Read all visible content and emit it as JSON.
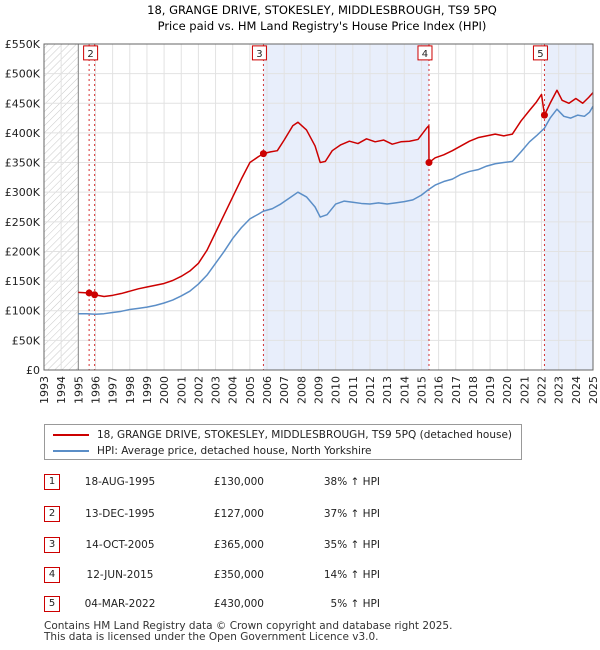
{
  "chart_data": {
    "type": "line",
    "title": "18, GRANGE DRIVE, STOKESLEY, MIDDLESBROUGH, TS9 5PQ",
    "subtitle": "Price paid vs. HM Land Registry's House Price Index (HPI)",
    "xlim": [
      1993,
      2025
    ],
    "ylim": [
      0,
      550000
    ],
    "x_ticks": [
      "1993",
      "1994",
      "1995",
      "1996",
      "1997",
      "1998",
      "1999",
      "2000",
      "2001",
      "2002",
      "2003",
      "2004",
      "2005",
      "2006",
      "2007",
      "2008",
      "2009",
      "2010",
      "2011",
      "2012",
      "2013",
      "2014",
      "2015",
      "2016",
      "2017",
      "2018",
      "2019",
      "2020",
      "2021",
      "2022",
      "2023",
      "2024",
      "2025"
    ],
    "y_ticks": [
      {
        "value": 0,
        "label": "£0"
      },
      {
        "value": 50000,
        "label": "£50K"
      },
      {
        "value": 100000,
        "label": "£100K"
      },
      {
        "value": 150000,
        "label": "£150K"
      },
      {
        "value": 200000,
        "label": "£200K"
      },
      {
        "value": 250000,
        "label": "£250K"
      },
      {
        "value": 300000,
        "label": "£300K"
      },
      {
        "value": 350000,
        "label": "£350K"
      },
      {
        "value": 400000,
        "label": "£400K"
      },
      {
        "value": 450000,
        "label": "£450K"
      },
      {
        "value": 500000,
        "label": "£500K"
      },
      {
        "value": 550000,
        "label": "£550K"
      }
    ],
    "hatched_until": 1995.0,
    "shaded_spans": [
      [
        2005.79,
        2015.44
      ],
      [
        2022.17,
        2025
      ]
    ],
    "series": [
      {
        "name": "18, GRANGE DRIVE, STOKESLEY, MIDDLESBROUGH, TS9 5PQ (detached house)",
        "color": "#cc0000",
        "points": [
          [
            1995.0,
            131000
          ],
          [
            1995.63,
            130000
          ],
          [
            1995.95,
            127000
          ],
          [
            1996.5,
            124000
          ],
          [
            1997.0,
            126000
          ],
          [
            1997.5,
            129000
          ],
          [
            1998.0,
            133000
          ],
          [
            1998.5,
            137000
          ],
          [
            1999.0,
            140000
          ],
          [
            1999.5,
            143000
          ],
          [
            2000.0,
            146000
          ],
          [
            2000.5,
            151000
          ],
          [
            2001.0,
            158000
          ],
          [
            2001.5,
            167000
          ],
          [
            2002.0,
            180000
          ],
          [
            2002.5,
            202000
          ],
          [
            2003.0,
            232000
          ],
          [
            2003.5,
            262000
          ],
          [
            2004.0,
            292000
          ],
          [
            2004.5,
            322000
          ],
          [
            2005.0,
            350000
          ],
          [
            2005.5,
            360000
          ],
          [
            2005.79,
            365000
          ],
          [
            2006.2,
            368000
          ],
          [
            2006.6,
            370000
          ],
          [
            2007.0,
            388000
          ],
          [
            2007.5,
            412000
          ],
          [
            2007.8,
            418000
          ],
          [
            2008.3,
            405000
          ],
          [
            2008.8,
            378000
          ],
          [
            2009.1,
            350000
          ],
          [
            2009.4,
            352000
          ],
          [
            2009.8,
            370000
          ],
          [
            2010.3,
            380000
          ],
          [
            2010.8,
            386000
          ],
          [
            2011.3,
            382000
          ],
          [
            2011.8,
            390000
          ],
          [
            2012.3,
            385000
          ],
          [
            2012.8,
            388000
          ],
          [
            2013.3,
            381000
          ],
          [
            2013.8,
            385000
          ],
          [
            2014.3,
            386000
          ],
          [
            2014.8,
            389000
          ],
          [
            2015.3,
            408000
          ],
          [
            2015.43,
            412000
          ],
          [
            2015.44,
            350000
          ],
          [
            2015.8,
            358000
          ],
          [
            2016.3,
            363000
          ],
          [
            2016.8,
            370000
          ],
          [
            2017.3,
            378000
          ],
          [
            2017.8,
            386000
          ],
          [
            2018.3,
            392000
          ],
          [
            2018.8,
            395000
          ],
          [
            2019.3,
            398000
          ],
          [
            2019.8,
            395000
          ],
          [
            2020.3,
            398000
          ],
          [
            2020.8,
            420000
          ],
          [
            2021.3,
            438000
          ],
          [
            2021.7,
            452000
          ],
          [
            2022.0,
            465000
          ],
          [
            2022.17,
            430000
          ],
          [
            2022.5,
            450000
          ],
          [
            2022.9,
            472000
          ],
          [
            2023.2,
            455000
          ],
          [
            2023.6,
            450000
          ],
          [
            2024.0,
            458000
          ],
          [
            2024.4,
            450000
          ],
          [
            2024.75,
            460000
          ],
          [
            2025.0,
            468000
          ]
        ]
      },
      {
        "name": "HPI: Average price, detached house, North Yorkshire",
        "color": "#5b8ec7",
        "points": [
          [
            1995.0,
            95000
          ],
          [
            1995.5,
            95000
          ],
          [
            1996.0,
            94000
          ],
          [
            1996.5,
            95000
          ],
          [
            1997.0,
            97000
          ],
          [
            1997.5,
            99000
          ],
          [
            1998.0,
            102000
          ],
          [
            1998.5,
            104000
          ],
          [
            1999.0,
            106000
          ],
          [
            1999.5,
            109000
          ],
          [
            2000.0,
            113000
          ],
          [
            2000.5,
            118000
          ],
          [
            2001.0,
            125000
          ],
          [
            2001.5,
            133000
          ],
          [
            2002.0,
            145000
          ],
          [
            2002.5,
            160000
          ],
          [
            2003.0,
            180000
          ],
          [
            2003.5,
            200000
          ],
          [
            2004.0,
            222000
          ],
          [
            2004.5,
            240000
          ],
          [
            2005.0,
            255000
          ],
          [
            2005.5,
            263000
          ],
          [
            2005.79,
            268000
          ],
          [
            2006.3,
            272000
          ],
          [
            2006.8,
            280000
          ],
          [
            2007.3,
            290000
          ],
          [
            2007.8,
            300000
          ],
          [
            2008.3,
            292000
          ],
          [
            2008.8,
            275000
          ],
          [
            2009.1,
            258000
          ],
          [
            2009.5,
            262000
          ],
          [
            2010.0,
            280000
          ],
          [
            2010.5,
            285000
          ],
          [
            2011.0,
            283000
          ],
          [
            2011.5,
            281000
          ],
          [
            2012.0,
            280000
          ],
          [
            2012.5,
            282000
          ],
          [
            2013.0,
            280000
          ],
          [
            2013.5,
            282000
          ],
          [
            2014.0,
            284000
          ],
          [
            2014.5,
            287000
          ],
          [
            2015.0,
            295000
          ],
          [
            2015.44,
            305000
          ],
          [
            2015.8,
            312000
          ],
          [
            2016.3,
            318000
          ],
          [
            2016.8,
            322000
          ],
          [
            2017.3,
            330000
          ],
          [
            2017.8,
            335000
          ],
          [
            2018.3,
            338000
          ],
          [
            2018.8,
            344000
          ],
          [
            2019.3,
            348000
          ],
          [
            2019.8,
            350000
          ],
          [
            2020.3,
            352000
          ],
          [
            2020.8,
            368000
          ],
          [
            2021.3,
            385000
          ],
          [
            2021.7,
            395000
          ],
          [
            2022.17,
            408000
          ],
          [
            2022.5,
            425000
          ],
          [
            2022.9,
            440000
          ],
          [
            2023.3,
            428000
          ],
          [
            2023.7,
            425000
          ],
          [
            2024.1,
            430000
          ],
          [
            2024.5,
            428000
          ],
          [
            2024.8,
            435000
          ],
          [
            2025.0,
            445000
          ]
        ]
      }
    ],
    "sales": [
      {
        "label": "1",
        "x": 1995.63,
        "y": 130000
      },
      {
        "label": "2",
        "x": 1995.95,
        "y": 127000
      },
      {
        "label": "3",
        "x": 2005.79,
        "y": 365000
      },
      {
        "label": "4",
        "x": 2015.44,
        "y": 350000
      },
      {
        "label": "5",
        "x": 2022.17,
        "y": 430000
      }
    ],
    "box_labels": [
      {
        "label": "2",
        "x": 1995.95,
        "y": 535000
      },
      {
        "label": "3",
        "x": 2005.79,
        "y": 535000
      },
      {
        "label": "4",
        "x": 2015.44,
        "y": 535000
      },
      {
        "label": "5",
        "x": 2022.17,
        "y": 535000
      }
    ]
  },
  "legend": {
    "items": [
      {
        "label": "18, GRANGE DRIVE, STOKESLEY, MIDDLESBROUGH, TS9 5PQ (detached house)",
        "color": "#cc0000"
      },
      {
        "label": "HPI: Average price, detached house, North Yorkshire",
        "color": "#5b8ec7"
      }
    ]
  },
  "transactions": [
    {
      "num": "1",
      "date": "18-AUG-1995",
      "price": "£130,000",
      "hpi": "38% ↑ HPI"
    },
    {
      "num": "2",
      "date": "13-DEC-1995",
      "price": "£127,000",
      "hpi": "37% ↑ HPI"
    },
    {
      "num": "3",
      "date": "14-OCT-2005",
      "price": "£365,000",
      "hpi": "35% ↑ HPI"
    },
    {
      "num": "4",
      "date": "12-JUN-2015",
      "price": "£350,000",
      "hpi": "14% ↑ HPI"
    },
    {
      "num": "5",
      "date": "04-MAR-2022",
      "price": "£430,000",
      "hpi": "5% ↑ HPI"
    }
  ],
  "footer": {
    "line1": "Contains HM Land Registry data © Crown copyright and database right 2025.",
    "line2": "This data is licensed under the Open Government Licence v3.0."
  }
}
